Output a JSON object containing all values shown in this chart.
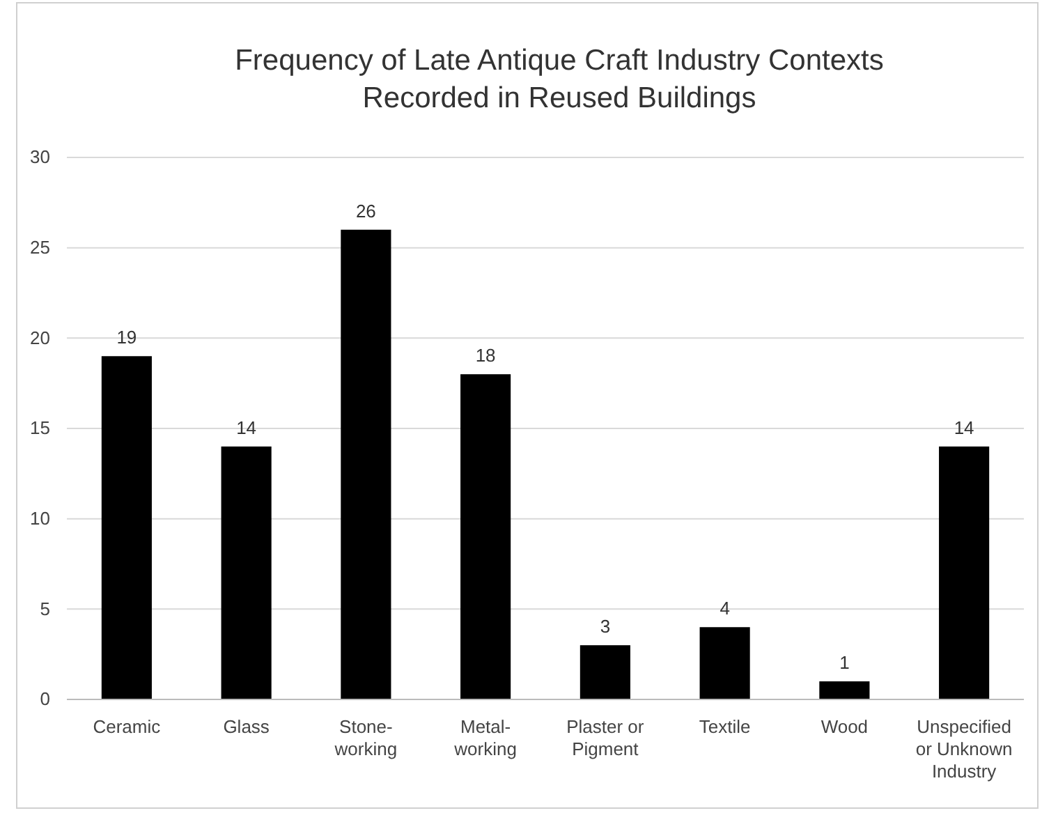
{
  "chart_data": {
    "type": "bar",
    "title": "Frequency of Late Antique Craft Industry Contexts\nRecorded in Reused Buildings",
    "categories": [
      "Ceramic",
      "Glass",
      "Stone-\nworking",
      "Metal-\nworking",
      "Plaster or\nPigment",
      "Textile",
      "Wood",
      "Unspecified\nor Unknown\nIndustry"
    ],
    "values": [
      19,
      14,
      26,
      18,
      3,
      4,
      1,
      14
    ],
    "color": "#000000",
    "ylim": [
      0,
      30
    ],
    "yticks": [
      0,
      5,
      10,
      15,
      20,
      25,
      30
    ],
    "grid": "y",
    "data_labels": true
  }
}
